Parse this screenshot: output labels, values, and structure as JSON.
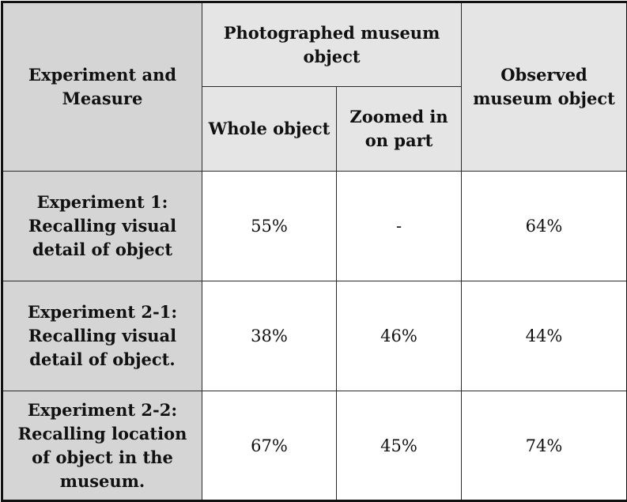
{
  "table": {
    "header": {
      "corner": "Experiment and Measure",
      "photographed": "Photographed museum object",
      "observed": "Observed museum object",
      "whole": "Whole object",
      "zoomed": "Zoomed in on part"
    },
    "rows": [
      {
        "label": "Experiment 1: Recalling visual detail of object",
        "whole": "55%",
        "zoomed": "-",
        "observed": "64%"
      },
      {
        "label": "Experiment 2-1: Recalling visual detail of object.",
        "whole": "38%",
        "zoomed": "46%",
        "observed": "44%"
      },
      {
        "label": "Experiment 2-2: Recalling location of object in the museum.",
        "whole": "67%",
        "zoomed": "45%",
        "observed": "74%"
      }
    ]
  }
}
